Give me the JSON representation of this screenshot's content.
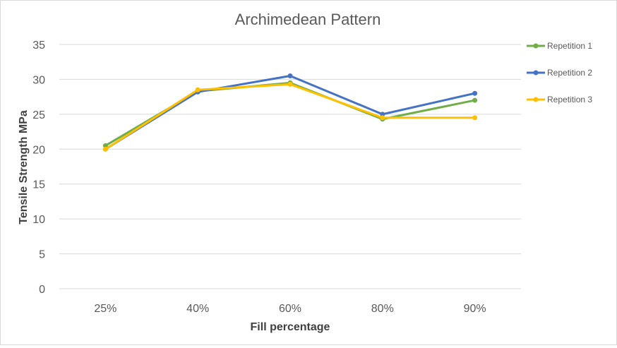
{
  "chart_data": {
    "type": "line",
    "title": "Archimedean Pattern",
    "xlabel": "Fill percentage",
    "ylabel": "Tensile Strength MPa",
    "categories": [
      "25%",
      "40%",
      "60%",
      "80%",
      "90%"
    ],
    "ylim": [
      0,
      35
    ],
    "yticks": [
      "0",
      "5",
      "10",
      "15",
      "20",
      "25",
      "30",
      "35"
    ],
    "grid": true,
    "legend_position": "right",
    "series": [
      {
        "name": "Repetition 1",
        "color": "#70ad47",
        "values": [
          20.5,
          28.3,
          29.5,
          24.3,
          27.0
        ]
      },
      {
        "name": "Repetition 2",
        "color": "#4472c4",
        "values": [
          20.0,
          28.2,
          30.5,
          25.0,
          28.0
        ]
      },
      {
        "name": "Repetition 3",
        "color": "#ffc000",
        "values": [
          20.0,
          28.5,
          29.3,
          24.5,
          24.5
        ]
      }
    ]
  }
}
